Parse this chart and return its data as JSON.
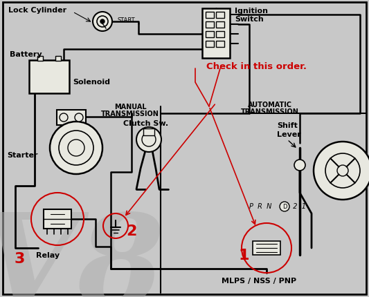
{
  "bg_color": "#c8c8c8",
  "inner_bg": "#e8e8e0",
  "black": "#000000",
  "red": "#cc0000",
  "white": "#ffffff",
  "gray_wm": "#b0b0b0",
  "labels": {
    "lock_cylinder": "Lock Cylinder",
    "ignition_switch_1": "Ignition",
    "ignition_switch_2": "Switch",
    "battery": "Battery",
    "solenoid": "Solenoid",
    "starter": "Starter",
    "clutch_sw": "Clutch Sw.",
    "shift_lever_1": "Shift",
    "shift_lever_2": "Lever",
    "relay": "Relay",
    "manual_tx_1": "MANUAL",
    "manual_tx_2": "TRANSMISSION",
    "auto_tx_1": "AUTOMATIC",
    "auto_tx_2": "TRANSMISSION",
    "mlps": "MLPS / NSS / PNP",
    "check_order": "Check in this order.",
    "prnd": "P  R  N",
    "prnd2": "D  2  1",
    "start": "START",
    "num1": "1",
    "num2": "2",
    "num3": "3"
  },
  "watermark": "V8",
  "figsize": [
    5.33,
    4.31
  ],
  "dpi": 100
}
